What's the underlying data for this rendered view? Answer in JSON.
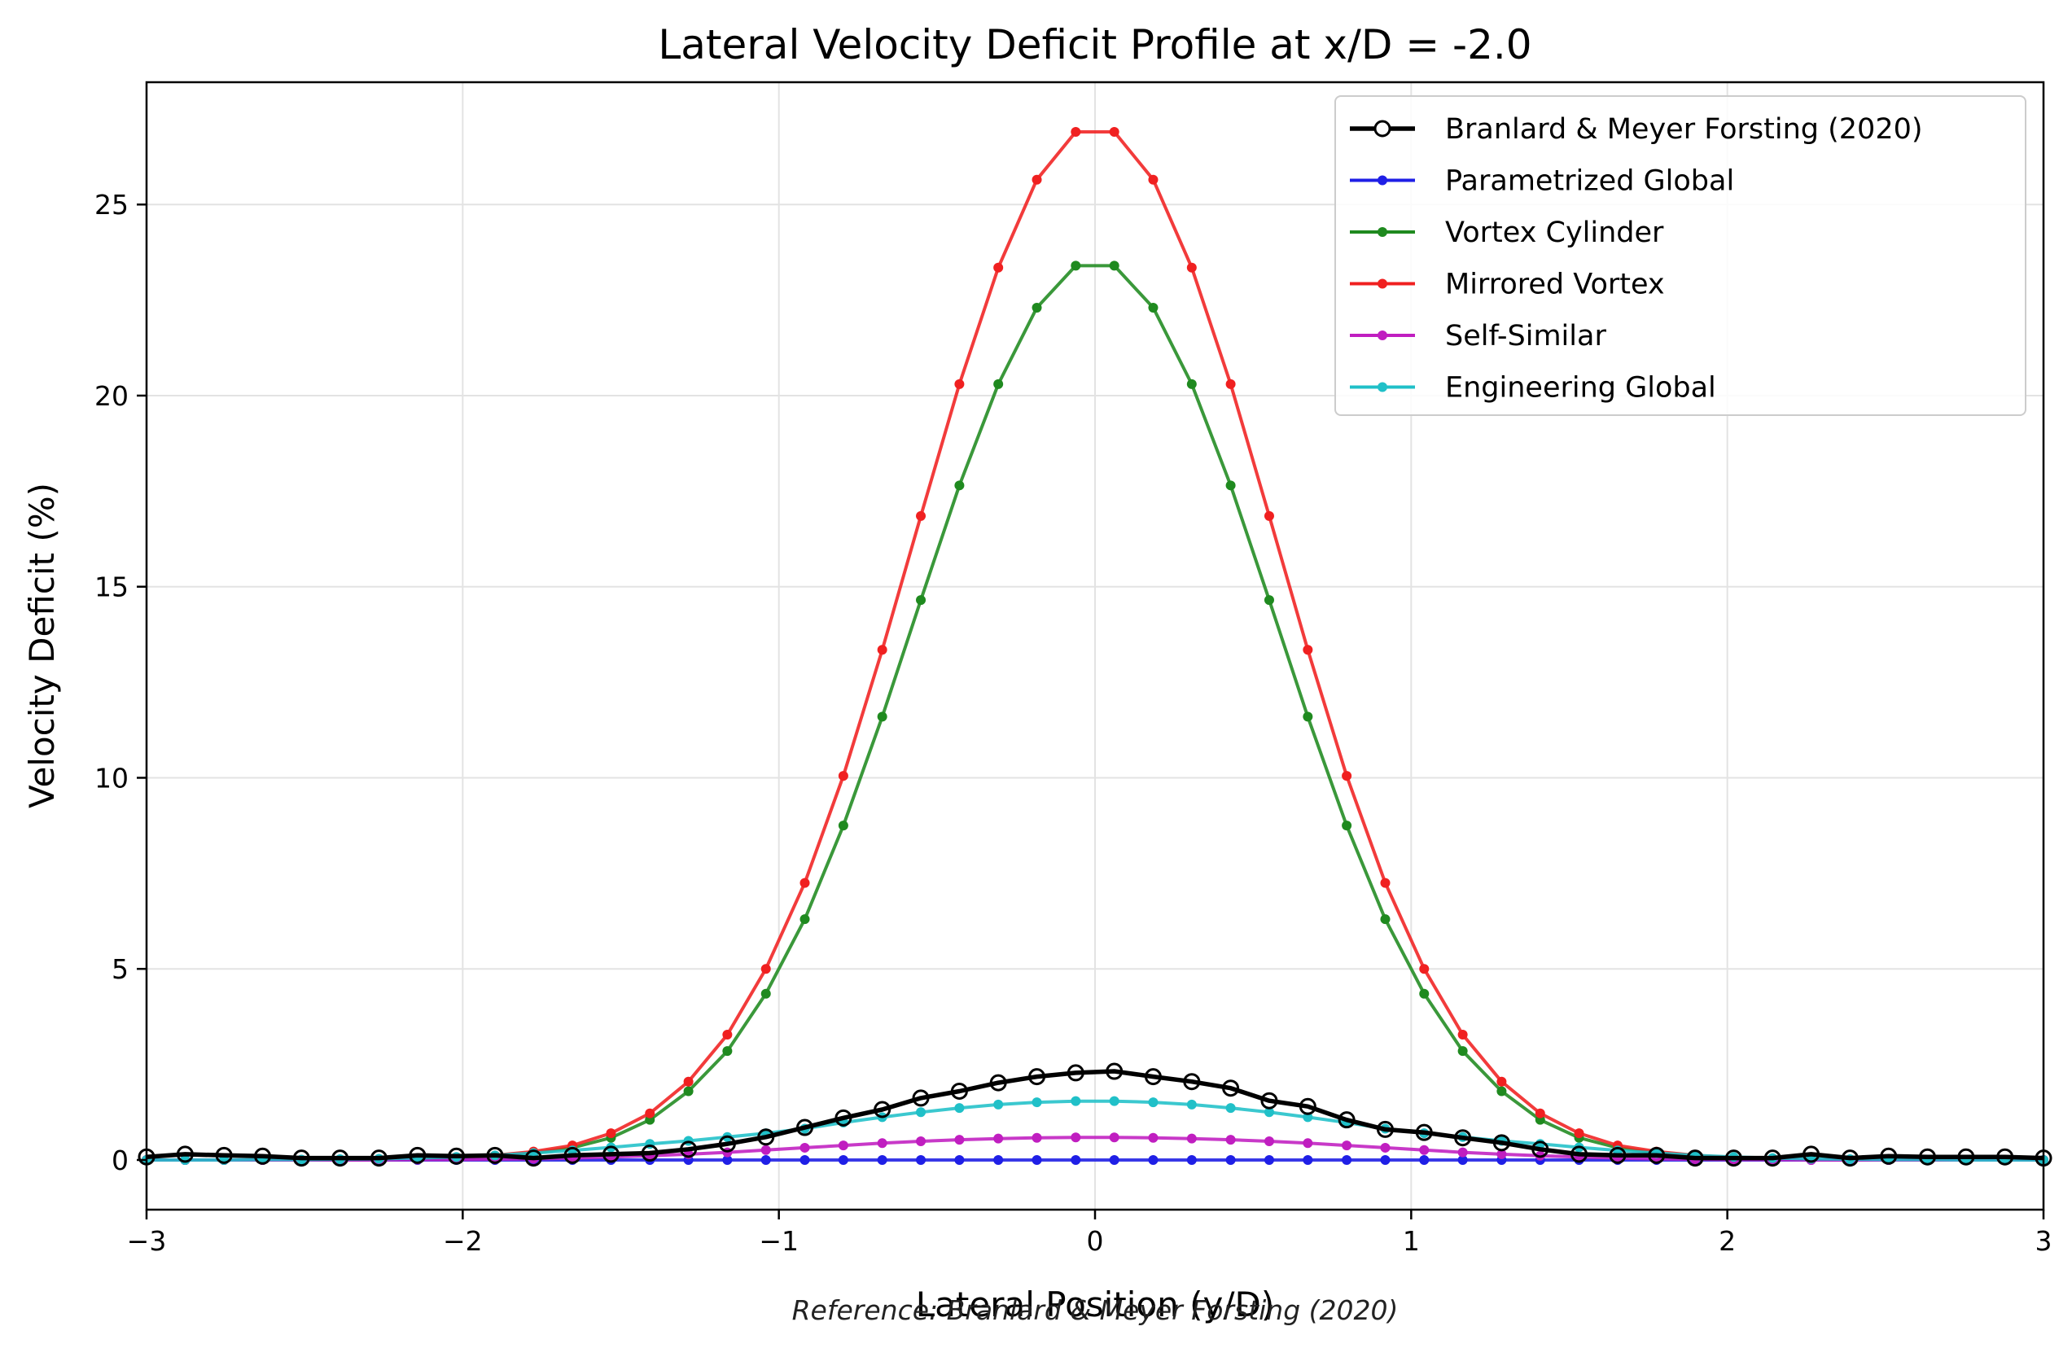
{
  "chart_data": {
    "type": "line",
    "title": "Lateral Velocity Deficit Profile at x/D = -2.0",
    "xlabel": "Lateral Position (y/D)",
    "ylabel": "Velocity Deficit (%)",
    "annotation": "Reference: Branlard & Meyer Forsting (2020)",
    "xlim": [
      -3,
      3
    ],
    "ylim": [
      -1.3,
      28.2
    ],
    "xticks": [
      -3,
      -2,
      -1,
      0,
      1,
      2,
      3
    ],
    "xtick_labels": [
      "−3",
      "−2",
      "−1",
      "0",
      "1",
      "2",
      "3"
    ],
    "yticks": [
      0,
      5,
      10,
      15,
      20,
      25
    ],
    "ytick_labels": [
      "0",
      "5",
      "10",
      "15",
      "20",
      "25"
    ],
    "grid": true,
    "legend_position": "top-right",
    "x": [
      -3.0,
      -2.878,
      -2.755,
      -2.633,
      -2.51,
      -2.388,
      -2.265,
      -2.143,
      -2.02,
      -1.898,
      -1.776,
      -1.653,
      -1.531,
      -1.408,
      -1.286,
      -1.163,
      -1.041,
      -0.918,
      -0.796,
      -0.673,
      -0.551,
      -0.429,
      -0.306,
      -0.184,
      -0.061,
      0.061,
      0.184,
      0.306,
      0.429,
      0.551,
      0.673,
      0.796,
      0.918,
      1.041,
      1.163,
      1.286,
      1.408,
      1.531,
      1.653,
      1.776,
      1.898,
      2.02,
      2.143,
      2.265,
      2.388,
      2.51,
      2.633,
      2.755,
      2.878,
      3.0
    ],
    "series": [
      {
        "name": "Branlard & Meyer Forsting (2020)",
        "color": "#000000",
        "marker": "open-circle",
        "values": [
          0.08,
          0.15,
          0.12,
          0.1,
          0.05,
          0.05,
          0.05,
          0.12,
          0.1,
          0.12,
          0.05,
          0.12,
          0.15,
          0.18,
          0.28,
          0.42,
          0.6,
          0.85,
          1.1,
          1.32,
          1.62,
          1.8,
          2.02,
          2.18,
          2.28,
          2.32,
          2.18,
          2.05,
          1.88,
          1.55,
          1.4,
          1.05,
          0.8,
          0.72,
          0.58,
          0.45,
          0.28,
          0.15,
          0.12,
          0.12,
          0.05,
          0.05,
          0.05,
          0.15,
          0.05,
          0.1,
          0.08,
          0.08,
          0.08,
          0.05
        ]
      },
      {
        "name": "Parametrized Global",
        "color": "#1f1fe6",
        "marker": "dot",
        "values": [
          0.0,
          0.0,
          0.0,
          0.0,
          0.0,
          0.0,
          0.0,
          0.0,
          0.0,
          0.0,
          0.0,
          0.0,
          0.0,
          0.0,
          0.0,
          0.0,
          0.0,
          0.0,
          0.0,
          0.0,
          0.0,
          0.0,
          0.0,
          0.0,
          0.0,
          0.0,
          0.0,
          0.0,
          0.0,
          0.0,
          0.0,
          0.0,
          0.0,
          0.0,
          0.0,
          0.0,
          0.0,
          0.0,
          0.0,
          0.0,
          0.0,
          0.0,
          0.0,
          0.0,
          0.0,
          0.0,
          0.0,
          0.0,
          0.0,
          0.0
        ]
      },
      {
        "name": "Vortex Cylinder",
        "color": "#1f8a1f",
        "marker": "dot",
        "values": [
          0.0,
          0.0,
          0.0,
          0.0,
          0.0,
          0.0,
          0.01,
          0.02,
          0.05,
          0.1,
          0.18,
          0.32,
          0.58,
          1.05,
          1.8,
          2.85,
          4.35,
          6.3,
          8.75,
          11.6,
          14.65,
          17.65,
          20.3,
          22.3,
          23.4,
          23.4,
          22.3,
          20.3,
          17.65,
          14.65,
          11.6,
          8.75,
          6.3,
          4.35,
          2.85,
          1.8,
          1.05,
          0.58,
          0.32,
          0.18,
          0.1,
          0.05,
          0.02,
          0.01,
          0.0,
          0.0,
          0.0,
          0.0,
          0.0,
          0.0
        ]
      },
      {
        "name": "Mirrored Vortex",
        "color": "#f02020",
        "marker": "dot",
        "values": [
          0.0,
          0.0,
          0.0,
          0.0,
          0.0,
          0.0,
          0.01,
          0.02,
          0.06,
          0.12,
          0.22,
          0.38,
          0.7,
          1.22,
          2.05,
          3.28,
          5.0,
          7.25,
          10.05,
          13.35,
          16.85,
          20.3,
          23.35,
          25.65,
          26.9,
          26.9,
          25.65,
          23.35,
          20.3,
          16.85,
          13.35,
          10.05,
          7.25,
          5.0,
          3.28,
          2.05,
          1.22,
          0.7,
          0.38,
          0.22,
          0.12,
          0.06,
          0.02,
          0.01,
          0.0,
          0.0,
          0.0,
          0.0,
          0.0,
          0.0
        ]
      },
      {
        "name": "Self-Similar",
        "color": "#c01ec0",
        "marker": "dot",
        "values": [
          0.0,
          0.0,
          0.0,
          0.0,
          0.0,
          0.0,
          0.0,
          0.01,
          0.01,
          0.02,
          0.03,
          0.05,
          0.08,
          0.11,
          0.15,
          0.2,
          0.26,
          0.32,
          0.38,
          0.44,
          0.49,
          0.53,
          0.56,
          0.58,
          0.59,
          0.59,
          0.58,
          0.56,
          0.53,
          0.49,
          0.44,
          0.38,
          0.32,
          0.26,
          0.2,
          0.15,
          0.11,
          0.08,
          0.05,
          0.03,
          0.02,
          0.01,
          0.01,
          0.0,
          0.0,
          0.0,
          0.0,
          0.0,
          0.0,
          0.0
        ]
      },
      {
        "name": "Engineering Global",
        "color": "#20c0c8",
        "marker": "dot",
        "values": [
          0.0,
          0.0,
          0.0,
          0.01,
          0.01,
          0.02,
          0.03,
          0.05,
          0.08,
          0.12,
          0.18,
          0.25,
          0.33,
          0.42,
          0.5,
          0.6,
          0.7,
          0.82,
          0.98,
          1.12,
          1.25,
          1.36,
          1.45,
          1.51,
          1.54,
          1.54,
          1.51,
          1.45,
          1.36,
          1.25,
          1.12,
          0.98,
          0.82,
          0.7,
          0.6,
          0.5,
          0.42,
          0.33,
          0.25,
          0.18,
          0.12,
          0.08,
          0.05,
          0.03,
          0.02,
          0.01,
          0.01,
          0.0,
          0.0,
          0.0
        ]
      }
    ]
  }
}
